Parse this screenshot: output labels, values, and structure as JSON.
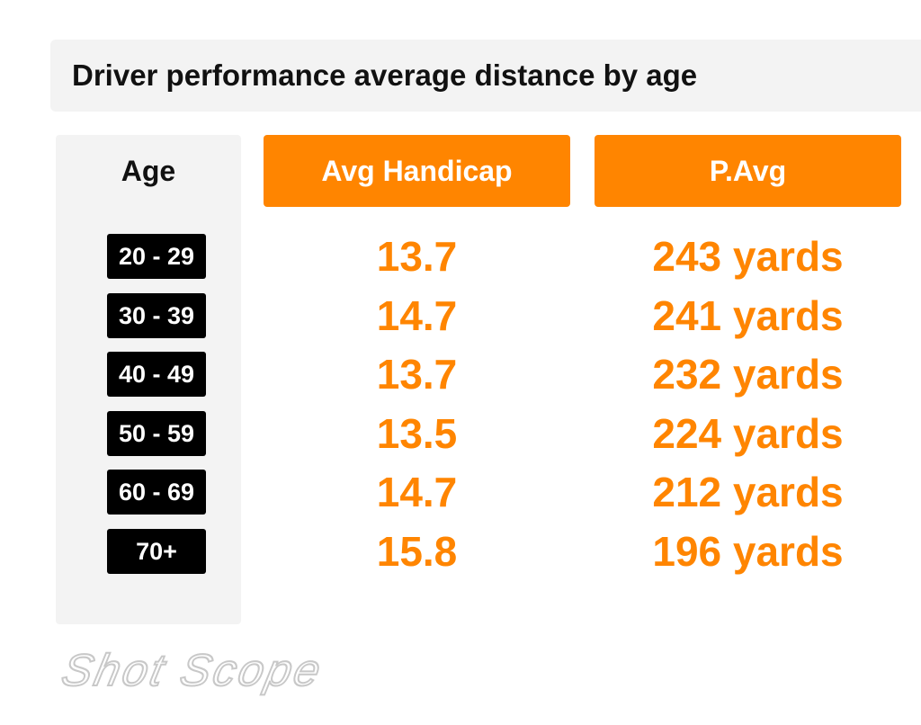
{
  "title": "Driver performance average distance by age",
  "brand": "Shot Scope",
  "colors": {
    "accent": "#ff8500",
    "badge": "#000000",
    "panel": "#f3f3f3",
    "logo": "#c8c8c8"
  },
  "chart_data": {
    "type": "table",
    "title": "Driver performance average distance by age",
    "columns": [
      "Age",
      "Avg Handicap",
      "P.Avg"
    ],
    "rows": [
      {
        "age": "20 - 29",
        "handicap": "13.7",
        "pavg": "243 yards"
      },
      {
        "age": "30 - 39",
        "handicap": "14.7",
        "pavg": "241 yards"
      },
      {
        "age": "40 - 49",
        "handicap": "13.7",
        "pavg": "232 yards"
      },
      {
        "age": "50 - 59",
        "handicap": "13.5",
        "pavg": "224 yards"
      },
      {
        "age": "60 - 69",
        "handicap": "14.7",
        "pavg": "212 yards"
      },
      {
        "age": "70+",
        "handicap": "15.8",
        "pavg": "196 yards"
      }
    ]
  }
}
